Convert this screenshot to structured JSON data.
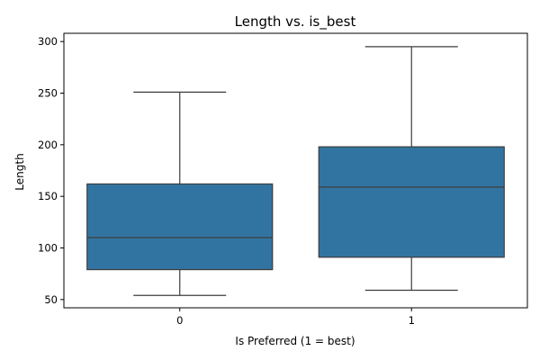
{
  "chart_data": {
    "type": "box",
    "title": "Length vs. is_best",
    "xlabel": "Is Preferred (1 = best)",
    "ylabel": "Length",
    "categories": [
      "0",
      "1"
    ],
    "boxes": [
      {
        "category": "0",
        "whisker_low": 54,
        "q1": 79,
        "median": 110,
        "q3": 162,
        "whisker_high": 251
      },
      {
        "category": "1",
        "whisker_low": 59,
        "q1": 91,
        "median": 159,
        "q3": 198,
        "whisker_high": 295
      }
    ],
    "ylim": [
      42,
      308
    ],
    "yticks": [
      50,
      100,
      150,
      200,
      250,
      300
    ],
    "grid": false,
    "colors": {
      "box": "#3274a1",
      "line": "#3d3d3d",
      "frame": "#000000"
    }
  }
}
